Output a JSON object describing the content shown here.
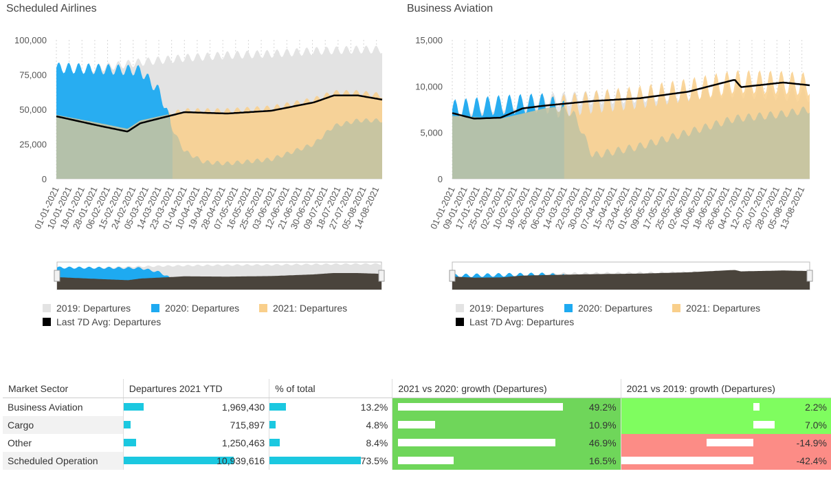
{
  "charts": {
    "left": {
      "title": "Scheduled Airlines",
      "y_ticks": [
        "100,000",
        "75,000",
        "50,000",
        "25,000",
        "0"
      ],
      "x_ticks": [
        "01-01-2021",
        "10-01-2021",
        "19-01-2021",
        "28-01-2021",
        "06-02-2021",
        "15-02-2021",
        "24-02-2021",
        "05-03-2021",
        "14-03-2021",
        "23-03-2021",
        "01-04-2021",
        "10-04-2021",
        "19-04-2021",
        "28-04-2021",
        "07-05-2021",
        "16-05-2021",
        "25-05-2021",
        "03-06-2021",
        "12-06-2021",
        "21-06-2021",
        "30-06-2021",
        "09-07-2021",
        "18-07-2021",
        "27-07-2021",
        "05-08-2021",
        "14-08-2021"
      ]
    },
    "right": {
      "title": "Business Aviation",
      "y_ticks": [
        "15,000",
        "10,000",
        "5,000",
        "0"
      ],
      "x_ticks": [
        "01-01-2021",
        "09-01-2021",
        "17-01-2021",
        "25-01-2021",
        "02-02-2021",
        "10-02-2021",
        "18-02-2021",
        "26-02-2021",
        "06-03-2021",
        "14-03-2021",
        "22-03-2021",
        "30-03-2021",
        "07-04-2021",
        "15-04-2021",
        "23-04-2021",
        "01-05-2021",
        "09-05-2021",
        "17-05-2021",
        "25-05-2021",
        "02-06-2021",
        "10-06-2021",
        "18-06-2021",
        "26-06-2021",
        "04-07-2021",
        "12-07-2021",
        "20-07-2021",
        "28-07-2021",
        "05-08-2021",
        "13-08-2021"
      ]
    }
  },
  "legend": {
    "s2019": "2019: Departures",
    "s2020": "2020: Departures",
    "s2021": "2021: Departures",
    "avg": "Last 7D Avg: Departures"
  },
  "colors": {
    "c2019": "#e3e3e3",
    "c2020": "#1eaaf1",
    "c2021": "#f9cf8b",
    "overlap": "#c3c3a2",
    "avg": "#000000",
    "growth_pos": "#6fd65a",
    "growth_pos_light": "#7ffd5f",
    "growth_neg": "#fc8c86",
    "bar": "#1bc8e0"
  },
  "chart_data": [
    {
      "type": "area",
      "title": "Scheduled Airlines",
      "x_range": [
        "01-01-2021",
        "18-08-2021"
      ],
      "ylim": [
        0,
        100000
      ],
      "series": [
        {
          "name": "2019: Departures",
          "x": [
            "01-01-2021",
            "01-02-2021",
            "01-03-2021",
            "01-04-2021",
            "01-05-2021",
            "01-06-2021",
            "01-07-2021",
            "01-08-2021",
            "18-08-2021"
          ],
          "values": [
            76000,
            80000,
            84000,
            87000,
            89000,
            90000,
            92000,
            93000,
            93000
          ]
        },
        {
          "name": "2020: Departures",
          "x": [
            "01-01-2021",
            "01-02-2021",
            "01-03-2021",
            "15-03-2021",
            "24-03-2021",
            "01-04-2021",
            "15-04-2021",
            "01-05-2021",
            "01-06-2021",
            "01-07-2021",
            "15-07-2021",
            "01-08-2021",
            "18-08-2021"
          ],
          "values": [
            80000,
            79000,
            78000,
            62000,
            35000,
            20000,
            12000,
            11000,
            14000,
            25000,
            38000,
            42000,
            42000
          ]
        },
        {
          "name": "2021: Departures",
          "x": [
            "01-01-2021",
            "01-02-2021",
            "20-02-2021",
            "01-03-2021",
            "01-04-2021",
            "01-05-2021",
            "01-06-2021",
            "01-07-2021",
            "15-07-2021",
            "01-08-2021",
            "18-08-2021"
          ],
          "values": [
            46000,
            40000,
            36000,
            42000,
            49000,
            49000,
            51000,
            57000,
            62000,
            62000,
            60000
          ]
        },
        {
          "name": "Last 7D Avg: Departures",
          "x": [
            "01-01-2021",
            "01-02-2021",
            "20-02-2021",
            "01-03-2021",
            "01-04-2021",
            "01-05-2021",
            "01-06-2021",
            "01-07-2021",
            "15-07-2021",
            "01-08-2021",
            "18-08-2021"
          ],
          "values": [
            45000,
            38000,
            34000,
            40000,
            48000,
            47000,
            49000,
            55000,
            60000,
            60000,
            57000
          ]
        }
      ]
    },
    {
      "type": "area",
      "title": "Business Aviation",
      "x_range": [
        "01-01-2021",
        "18-08-2021"
      ],
      "ylim": [
        0,
        15000
      ],
      "series": [
        {
          "name": "2019: Departures",
          "x": [
            "01-01-2021",
            "01-03-2021",
            "01-05-2021",
            "01-07-2021",
            "18-08-2021"
          ],
          "values": [
            7500,
            8500,
            9000,
            9500,
            9000
          ]
        },
        {
          "name": "2020: Departures",
          "x": [
            "01-01-2021",
            "01-02-2021",
            "01-03-2021",
            "20-03-2021",
            "01-04-2021",
            "01-05-2021",
            "01-06-2021",
            "01-07-2021",
            "01-08-2021",
            "18-08-2021"
          ],
          "values": [
            7500,
            8000,
            8200,
            7000,
            2500,
            3500,
            5000,
            6500,
            7000,
            7500
          ]
        },
        {
          "name": "2021: Departures",
          "x": [
            "01-01-2021",
            "01-02-2021",
            "01-03-2021",
            "01-04-2021",
            "01-05-2021",
            "01-06-2021",
            "01-07-2021",
            "01-08-2021",
            "18-08-2021"
          ],
          "values": [
            6800,
            6500,
            7600,
            8300,
            8800,
            9600,
            10500,
            10400,
            10200
          ]
        },
        {
          "name": "Last 7D Avg: Departures",
          "x": [
            "01-01-2021",
            "15-01-2021",
            "01-02-2021",
            "15-02-2021",
            "01-03-2021",
            "01-04-2021",
            "01-05-2021",
            "01-06-2021",
            "01-07-2021",
            "05-07-2021",
            "01-08-2021",
            "18-08-2021"
          ],
          "values": [
            7100,
            6500,
            6600,
            7600,
            7900,
            8400,
            8700,
            9400,
            10700,
            9900,
            10400,
            10100
          ]
        }
      ]
    },
    {
      "type": "table",
      "columns": [
        "Market Sector",
        "Departures 2021 YTD",
        "% of total",
        "2021 vs 2020: growth (Departures)",
        "2021 vs 2019: growth (Departures)"
      ],
      "rows": [
        {
          "sector": "Business Aviation",
          "departures": "1,969,430",
          "pct": "13.2%",
          "g2020": "49.2%",
          "g2019": "2.2%",
          "dep_v": 1969430,
          "pct_v": 13.2,
          "g2020_v": 49.2,
          "g2019_v": 2.2
        },
        {
          "sector": "Cargo",
          "departures": "715,897",
          "pct": "4.8%",
          "g2020": "10.9%",
          "g2019": "7.0%",
          "dep_v": 715897,
          "pct_v": 4.8,
          "g2020_v": 10.9,
          "g2019_v": 7.0
        },
        {
          "sector": "Other",
          "departures": "1,250,463",
          "pct": "8.4%",
          "g2020": "46.9%",
          "g2019": "-14.9%",
          "dep_v": 1250463,
          "pct_v": 8.4,
          "g2020_v": 46.9,
          "g2019_v": -14.9
        },
        {
          "sector": "Scheduled Operation",
          "departures": "10,939,616",
          "pct": "73.5%",
          "g2020": "16.5%",
          "g2019": "-42.4%",
          "dep_v": 10939616,
          "pct_v": 73.5,
          "g2020_v": 16.5,
          "g2019_v": -42.4
        }
      ]
    }
  ]
}
